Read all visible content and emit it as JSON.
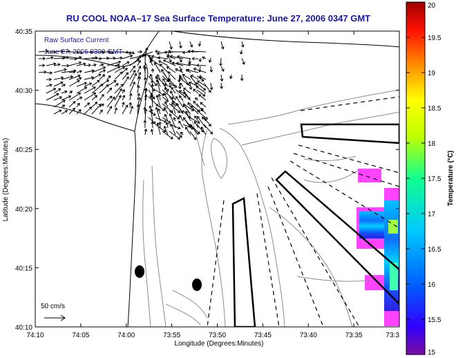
{
  "chart_data": {
    "type": "map",
    "title": "RU COOL   NOAA–17  Sea Surface Temperature:  June 27, 2006 0347 GMT",
    "annotations": {
      "current_label": "Raw Surface Current",
      "current_time": "June 27, 2006 0300 GMT",
      "scale_label": "50 cm/s"
    },
    "xlabel": "Longitude (Degrees:Minutes)",
    "ylabel": "Latitude (Degrees:Minutes)",
    "xticks": [
      "74:10",
      "74:05",
      "74:00",
      "73:55",
      "73:50",
      "73:45",
      "73:40",
      "73:35",
      "73:3"
    ],
    "yticks": [
      "40:35",
      "40:30",
      "40:25",
      "40:20",
      "40:15",
      "40:10"
    ],
    "xlim_minutes_west": [
      10,
      30
    ],
    "ylim_minutes_north": [
      10,
      35
    ],
    "colorbar": {
      "label": "Temperature (°C)",
      "ticks": [
        "20",
        "19.5",
        "19",
        "18.5",
        "18",
        "17.5",
        "17",
        "16.5",
        "16",
        "15.5",
        "15"
      ],
      "range": [
        15,
        20
      ],
      "colormap": "jet"
    },
    "markers": [
      {
        "shape": "ellipse",
        "lon": "73:58.8",
        "lat": "40:14.3"
      },
      {
        "shape": "ellipse",
        "lon": "73:52.3",
        "lat": "40:13.4"
      }
    ],
    "colors": {
      "title": "#1a1a9a",
      "land_bg": "#ffffff",
      "contour": "#8c8c8c",
      "missing_data": "#ff44ff"
    }
  }
}
